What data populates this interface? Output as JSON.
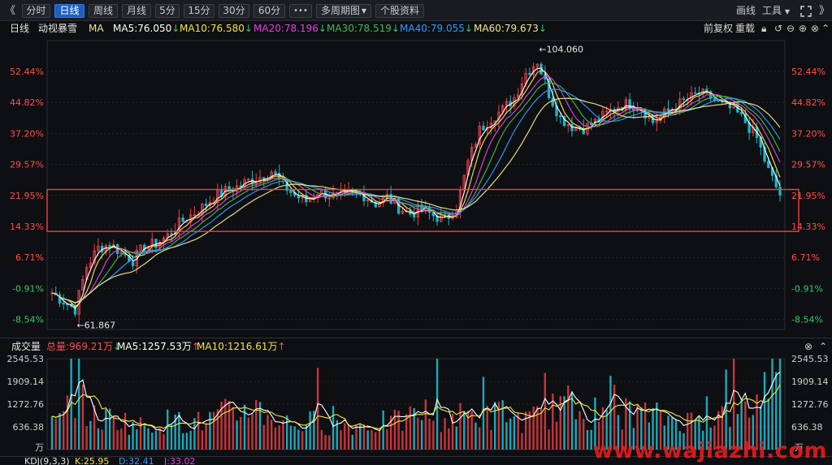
{
  "toolbar": {
    "collapse_icon": "double-chevron-left",
    "tabs": [
      {
        "label": "分时",
        "active": false
      },
      {
        "label": "日线",
        "active": true
      },
      {
        "label": "周线",
        "active": false
      },
      {
        "label": "月线",
        "active": false
      },
      {
        "label": "5分",
        "active": false
      },
      {
        "label": "15分",
        "active": false
      },
      {
        "label": "30分",
        "active": false
      },
      {
        "label": "60分",
        "active": false
      }
    ],
    "more_label": "•••",
    "multi_period_label": "多周期图",
    "stock_info_label": "个股资料",
    "draw_label": "画线",
    "tools_label": "工具",
    "expand_icon": "fullscreen-icon",
    "collapse_right_icon": "double-chevron-right"
  },
  "legend": {
    "period": "日线",
    "stock_name": "动视暴雪",
    "ma_label": "MA",
    "ma5": "MA5:76.050",
    "ma10": "MA10:76.580",
    "ma20": "MA20:78.196",
    "ma30": "MA30:78.519",
    "ma40": "MA40:79.055",
    "ma60": "MA60:79.673",
    "adjust_label": "前复权",
    "redraw_label": "重载",
    "colors": {
      "ma5": "#ffffff",
      "ma10": "#f4e542",
      "ma20": "#e040e0",
      "ma30": "#3fb950",
      "ma40": "#2f9bff",
      "ma60": "#f0e68c"
    }
  },
  "price_axis": {
    "left_labels": [
      "52.44%",
      "44.82%",
      "37.20%",
      "29.57%",
      "21.95%",
      "14.33%",
      "6.71%",
      "-0.91%",
      "-8.54%"
    ],
    "right_labels": [
      "52.44%",
      "44.82%",
      "37.20%",
      "29.57%",
      "21.95%",
      "14.33%",
      "6.71%",
      "-0.91%",
      "-8.54%"
    ],
    "high_marker": "104.060",
    "low_marker": "61.867",
    "colors": {
      "up": "#ff4d4d",
      "down": "#33c96b",
      "neutral": "#cccccc"
    }
  },
  "highlight_box": {
    "top_pct": 23.4,
    "bottom_pct": 13.1,
    "color": "#ff3b3b"
  },
  "volume": {
    "title": "成交量",
    "total": "总量:969.21万",
    "ma5": "MA5:1257.53万",
    "ma10": "MA10:1216.61万",
    "axis_labels": [
      "2545.53",
      "1909.14",
      "1272.76",
      "636.38"
    ],
    "unit": "万",
    "max_value": 2545.53
  },
  "kdj": {
    "title": "KDJ(9,3,3)",
    "k": "K:25.95",
    "d": "D:32.41",
    "j": "J:33.02"
  },
  "watermark": "www.wajiazhi.com",
  "chart_data": {
    "type": "candlestick",
    "title": "动视暴雪",
    "ylabel": "%",
    "ylim": [
      -11,
      60
    ],
    "y_ticks": [
      52.44,
      44.82,
      37.2,
      29.57,
      21.95,
      14.33,
      6.71,
      -0.91,
      -8.54
    ],
    "high": 104.06,
    "low": 61.867,
    "ma_values": {
      "MA5": 76.05,
      "MA10": 76.58,
      "MA20": 78.196,
      "MA30": 78.519,
      "MA40": 79.055,
      "MA60": 79.673
    },
    "close_series_pct": [
      -2.0,
      -4.0,
      -6.0,
      4.5,
      9.0,
      10.0,
      8.0,
      6.0,
      9.5,
      10.0,
      12.0,
      15.0,
      17.0,
      19.0,
      21.5,
      23.0,
      24.0,
      25.5,
      26.5,
      28.0,
      24.5,
      22.0,
      20.5,
      23.0,
      22.0,
      21.5,
      22.5,
      22.0,
      20.0,
      21.5,
      19.0,
      17.5,
      18.5,
      17.0,
      16.0,
      19.0,
      30.0,
      38.0,
      41.0,
      43.0,
      46.0,
      52.0,
      55.0,
      47.0,
      41.0,
      39.0,
      38.5,
      40.0,
      42.0,
      44.0,
      44.5,
      43.5,
      40.0,
      42.0,
      44.0,
      45.5,
      47.0,
      46.0,
      44.0,
      43.0,
      40.0,
      36.0,
      28.0,
      22.0
    ],
    "volume_series_wan": [
      700,
      900,
      1600,
      1100,
      800,
      900,
      850,
      700,
      650,
      750,
      800,
      700,
      800,
      750,
      900,
      1000,
      950,
      1300,
      1100,
      900,
      800,
      700,
      750,
      800,
      700,
      650,
      700,
      680,
      720,
      800,
      760,
      900,
      1100,
      950,
      850,
      900,
      1000,
      950,
      900,
      1100,
      850,
      800,
      900,
      1000,
      1400,
      1200,
      1000,
      900,
      850,
      900,
      1100,
      1000,
      950,
      900,
      850,
      800,
      850,
      900,
      950,
      1000,
      1100,
      1300,
      2200,
      2545
    ],
    "volume_ma5": 1257.53,
    "volume_ma10": 1216.61
  }
}
